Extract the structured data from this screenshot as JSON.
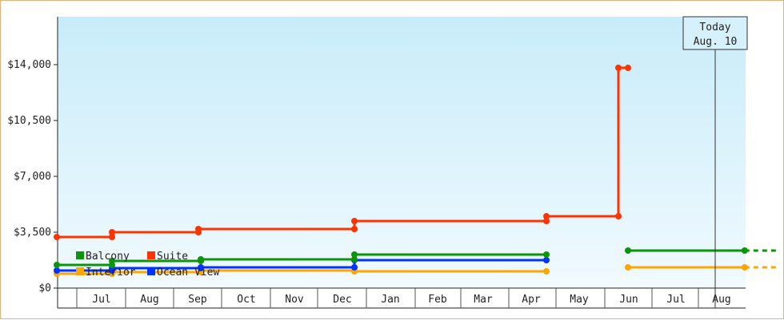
{
  "chart_data": {
    "type": "line",
    "step": true,
    "x_ticks": [
      "Jul",
      "Aug",
      "Sep",
      "Oct",
      "Nov",
      "Dec",
      "Jan",
      "Feb",
      "Mar",
      "Apr",
      "May",
      "Jun",
      "Jul",
      "Aug"
    ],
    "y_ticks": [
      "$0",
      "$3,500",
      "$7,000",
      "$10,500",
      "$14,000"
    ],
    "ylim": [
      0,
      17000
    ],
    "today_marker": {
      "line1": "Today",
      "line2": "Aug. 10",
      "month": 14.33
    },
    "legend": [
      {
        "label": "Balcony",
        "color": "#0a950a"
      },
      {
        "label": "Suite",
        "color": "#ff3300"
      },
      {
        "label": "Interior",
        "color": "#ffa500"
      },
      {
        "label": "Ocean View",
        "color": "#0033ff"
      }
    ],
    "series": [
      {
        "name": "Suite",
        "color": "#ff3300",
        "points": [
          [
            0,
            3200
          ],
          [
            1.15,
            3200
          ],
          [
            1.15,
            3500
          ],
          [
            2.95,
            3500
          ],
          [
            2.95,
            3700
          ],
          [
            6.2,
            3700
          ],
          [
            6.2,
            4200
          ],
          [
            10.2,
            4200
          ],
          [
            10.2,
            4500
          ],
          [
            11.7,
            4500
          ],
          [
            11.7,
            13800
          ],
          [
            11.9,
            13800
          ]
        ],
        "markers": [
          [
            0,
            3200
          ],
          [
            1.15,
            3200
          ],
          [
            1.15,
            3500
          ],
          [
            2.95,
            3500
          ],
          [
            2.95,
            3700
          ],
          [
            6.2,
            3700
          ],
          [
            6.2,
            4200
          ],
          [
            10.2,
            4200
          ],
          [
            10.2,
            4500
          ],
          [
            11.7,
            4500
          ],
          [
            11.7,
            13800
          ],
          [
            11.9,
            13800
          ]
        ]
      },
      {
        "name": "Balcony",
        "color": "#0a950a",
        "points": [
          [
            0,
            1450
          ],
          [
            1.15,
            1450
          ],
          [
            1.15,
            1700
          ],
          [
            3.0,
            1700
          ],
          [
            3.0,
            1800
          ],
          [
            6.2,
            1800
          ],
          [
            6.2,
            2100
          ],
          [
            10.2,
            2100
          ]
        ],
        "markers": [
          [
            0,
            1450
          ],
          [
            1.15,
            1450
          ],
          [
            1.15,
            1700
          ],
          [
            3.0,
            1700
          ],
          [
            3.0,
            1800
          ],
          [
            6.2,
            1800
          ],
          [
            6.2,
            2100
          ],
          [
            10.2,
            2100
          ]
        ],
        "points2": [
          [
            11.9,
            2350
          ],
          [
            14.33,
            2350
          ]
        ],
        "markers2": [
          [
            11.9,
            2350
          ],
          [
            14.33,
            2350
          ]
        ],
        "dashed": [
          [
            14.33,
            2350
          ],
          [
            15.0,
            2350
          ]
        ]
      },
      {
        "name": "Ocean View",
        "color": "#0033ff",
        "points": [
          [
            0,
            1100
          ],
          [
            1.15,
            1100
          ],
          [
            1.15,
            1250
          ],
          [
            3.0,
            1250
          ],
          [
            3.0,
            1300
          ],
          [
            6.2,
            1300
          ],
          [
            6.2,
            1750
          ],
          [
            10.2,
            1750
          ]
        ],
        "markers": [
          [
            0,
            1100
          ],
          [
            1.15,
            1100
          ],
          [
            1.15,
            1250
          ],
          [
            3.0,
            1250
          ],
          [
            3.0,
            1300
          ],
          [
            6.2,
            1300
          ],
          [
            6.2,
            1750
          ],
          [
            10.2,
            1750
          ]
        ]
      },
      {
        "name": "Interior",
        "color": "#ffa500",
        "points": [
          [
            0,
            900
          ],
          [
            1.15,
            900
          ],
          [
            1.15,
            1000
          ],
          [
            3.0,
            1000
          ],
          [
            3.0,
            1100
          ],
          [
            6.2,
            1100
          ],
          [
            6.2,
            1050
          ],
          [
            10.2,
            1050
          ]
        ],
        "markers": [
          [
            0,
            900
          ],
          [
            1.15,
            900
          ],
          [
            1.15,
            1000
          ],
          [
            3.0,
            1000
          ],
          [
            3.0,
            1100
          ],
          [
            6.2,
            1100
          ],
          [
            6.2,
            1050
          ],
          [
            10.2,
            1050
          ]
        ],
        "points2": [
          [
            11.9,
            1300
          ],
          [
            14.33,
            1300
          ]
        ],
        "markers2": [
          [
            11.9,
            1300
          ],
          [
            14.33,
            1300
          ]
        ],
        "dashed": [
          [
            14.33,
            1300
          ],
          [
            15.0,
            1300
          ]
        ]
      }
    ]
  }
}
